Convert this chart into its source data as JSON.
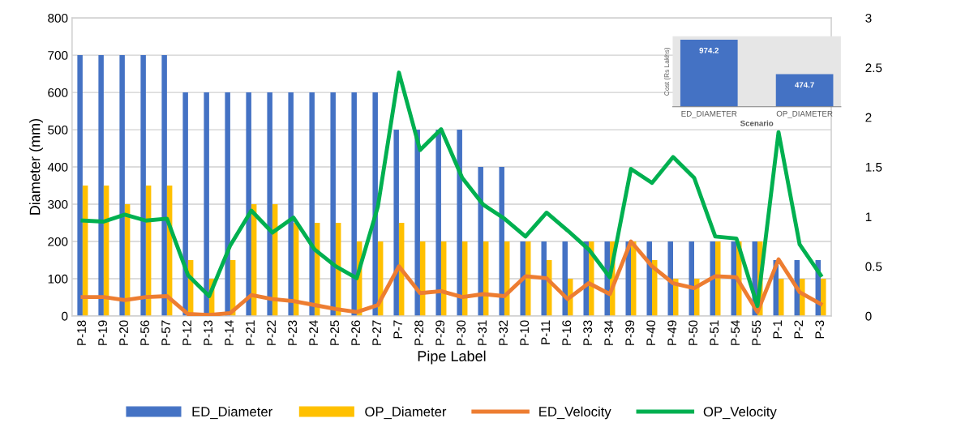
{
  "chart_data": [
    {
      "type": "bar",
      "xlabel": "Pipe Label",
      "ylabel": "Diameter (mm)",
      "categories": [
        "P-18",
        "P-19",
        "P-20",
        "P-56",
        "P-57",
        "P-12",
        "P-13",
        "P-14",
        "P-21",
        "P-22",
        "P-23",
        "P-24",
        "P-25",
        "P-26",
        "P-27",
        "P-7",
        "P-28",
        "P-29",
        "P-30",
        "P-31",
        "P-32",
        "P-10",
        "P-11",
        "P-16",
        "P-33",
        "P-34",
        "P-39",
        "P-40",
        "P-49",
        "P-50",
        "P-51",
        "P-54",
        "P-55",
        "P-1",
        "P-2",
        "P-3"
      ],
      "series": [
        {
          "name": "ED_Diameter",
          "type": "bar",
          "color": "#4472c4",
          "values": [
            700,
            700,
            700,
            700,
            700,
            600,
            600,
            600,
            600,
            600,
            600,
            600,
            600,
            600,
            600,
            500,
            500,
            500,
            500,
            400,
            400,
            200,
            200,
            200,
            200,
            200,
            200,
            200,
            200,
            200,
            200,
            200,
            200,
            150,
            150,
            150
          ]
        },
        {
          "name": "OP_Diameter",
          "type": "bar",
          "color": "#ffc000",
          "values": [
            350,
            350,
            300,
            350,
            350,
            150,
            100,
            150,
            300,
            300,
            250,
            250,
            250,
            200,
            200,
            250,
            200,
            200,
            200,
            200,
            200,
            200,
            150,
            100,
            200,
            200,
            200,
            150,
            100,
            100,
            200,
            200,
            200,
            100,
            100,
            100
          ]
        },
        {
          "name": "ED_Velocity",
          "type": "line",
          "axis": "y2",
          "color": "#ed7d31",
          "values": [
            0.19,
            0.19,
            0.16,
            0.19,
            0.2,
            0.02,
            0.01,
            0.03,
            0.21,
            0.17,
            0.15,
            0.11,
            0.07,
            0.04,
            0.11,
            0.5,
            0.23,
            0.25,
            0.19,
            0.22,
            0.2,
            0.4,
            0.38,
            0.17,
            0.33,
            0.22,
            0.75,
            0.5,
            0.33,
            0.28,
            0.4,
            0.39,
            0.04,
            0.57,
            0.24,
            0.12
          ]
        },
        {
          "name": "OP_Velocity",
          "type": "line",
          "axis": "y2",
          "color": "#00b050",
          "values": [
            0.96,
            0.95,
            1.02,
            0.96,
            0.98,
            0.41,
            0.2,
            0.71,
            1.06,
            0.84,
            0.99,
            0.67,
            0.5,
            0.38,
            1.1,
            2.45,
            1.67,
            1.88,
            1.39,
            1.12,
            0.98,
            0.8,
            1.04,
            0.86,
            0.67,
            0.39,
            1.48,
            1.34,
            1.6,
            1.39,
            0.8,
            0.78,
            0.1,
            1.85,
            0.72,
            0.41
          ]
        }
      ],
      "ylim": [
        0,
        800
      ],
      "yticks": [
        0,
        100,
        200,
        300,
        400,
        500,
        600,
        700,
        800
      ],
      "y2lim": [
        0,
        3
      ],
      "y2ticks": [
        0,
        0.5,
        1,
        1.5,
        2,
        2.5,
        3
      ],
      "grid": true,
      "legend": "bottom",
      "line_style": "solid",
      "marker": "none"
    },
    {
      "type": "bar",
      "xlabel": "Scenario",
      "ylabel": "Cost (Rs Lakhs)",
      "categories": [
        "ED_DIAMETER",
        "OP_DIAMETER"
      ],
      "values": [
        974.2,
        474.7
      ],
      "color": "#4472c4",
      "data_labels": true,
      "tick_labels": "x"
    }
  ]
}
